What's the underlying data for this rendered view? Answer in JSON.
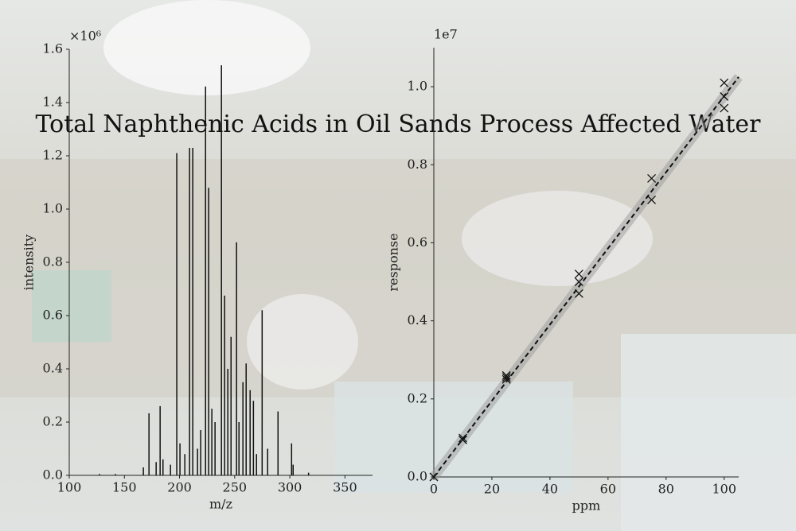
{
  "title": "Total Naphthenic Acids in Oil Sands Process Affected Water",
  "chart_data": [
    {
      "type": "stem",
      "x_label": "m/z",
      "y_label": "intensity",
      "y_multiplier": "×10⁶",
      "color": "#111111",
      "x": [
        127.5,
        141.9,
        167.2,
        172.3,
        178.8,
        182.4,
        185,
        191.8,
        197.5,
        200.4,
        204.8,
        209.1,
        212,
        216.3,
        219.2,
        223.6,
        226.4,
        229.3,
        232.2,
        238,
        240.9,
        243.8,
        246.7,
        251.7,
        253.9,
        257.5,
        260.4,
        264,
        267,
        269.8,
        274.9,
        279.9,
        289.3,
        301.6,
        303,
        317
      ],
      "values": [
        0.005,
        0.005,
        0.03,
        0.233,
        0.05,
        0.26,
        0.06,
        0.04,
        1.21,
        0.12,
        0.08,
        1.23,
        1.23,
        0.1,
        0.17,
        1.46,
        1.08,
        0.25,
        0.2,
        1.54,
        0.675,
        0.4,
        0.52,
        0.875,
        0.2,
        0.35,
        0.42,
        0.32,
        0.28,
        0.08,
        0.62,
        0.1,
        0.24,
        0.12,
        0.04,
        0.01
      ],
      "xlim": [
        100,
        375
      ],
      "xticks": [
        100,
        150,
        200,
        250,
        300,
        350
      ],
      "ylim": [
        0,
        1.6
      ],
      "yticks": [
        {
          "value": 0,
          "label": "0.0"
        },
        0.2,
        0.4,
        0.6,
        0.8,
        {
          "value": 1,
          "label": "1.0"
        },
        1.2,
        1.4,
        1.6
      ]
    },
    {
      "type": "scatter",
      "x_label": "ppm",
      "y_label": "response",
      "y_multiplier": "1e7",
      "color": "#111111",
      "x": [
        0,
        10,
        10,
        25,
        25,
        25,
        50,
        50,
        50,
        75,
        75,
        100,
        100,
        100
      ],
      "values": [
        0.0,
        0.1,
        0.095,
        0.26,
        0.25,
        0.255,
        0.52,
        0.5,
        0.47,
        0.765,
        0.71,
        1.01,
        0.975,
        0.945
      ],
      "fit": {
        "x": [
          0,
          105
        ],
        "values": [
          0,
          1.025
        ]
      },
      "xlim": [
        0,
        105
      ],
      "xticks": [
        0,
        20,
        40,
        60,
        80,
        100
      ],
      "ylim": [
        0,
        1.1
      ],
      "yticks": [
        {
          "value": 0,
          "label": "0.0"
        },
        0.2,
        0.4,
        0.6,
        0.8,
        {
          "value": 1,
          "label": "1.0"
        }
      ]
    }
  ]
}
